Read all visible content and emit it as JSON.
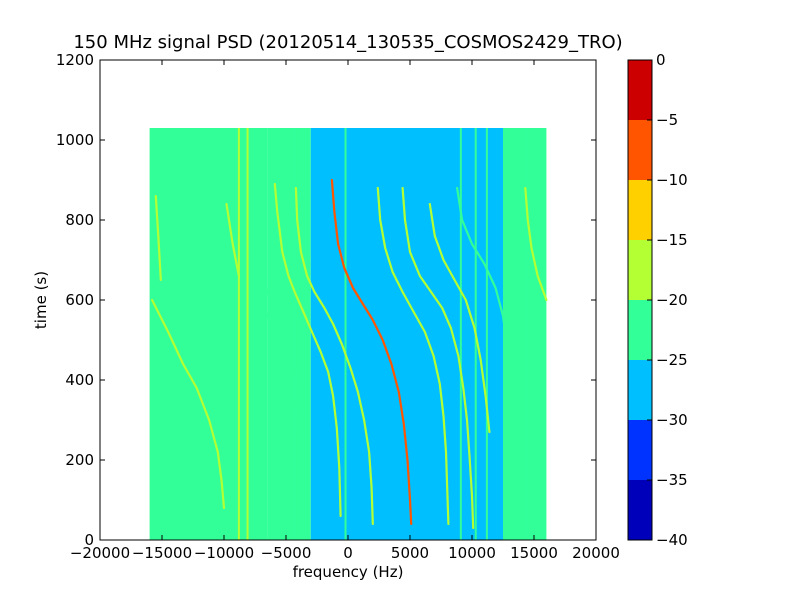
{
  "chart_data": {
    "type": "heatmap",
    "title": "150 MHz signal PSD (20120514_130535_COSMOS2429_TRO)",
    "xlabel": "frequency (Hz)",
    "ylabel": "time (s)",
    "xlim": [
      -20000,
      20000
    ],
    "ylim": [
      0,
      1200
    ],
    "x_ticks": [
      -20000,
      -15000,
      -10000,
      -5000,
      0,
      5000,
      10000,
      15000,
      20000
    ],
    "x_tick_labels": [
      "−20000",
      "−15000",
      "−10000",
      "−5000",
      "0",
      "5000",
      "10000",
      "15000",
      "20000"
    ],
    "y_ticks": [
      0,
      200,
      400,
      600,
      800,
      1000,
      1200
    ],
    "y_tick_labels": [
      "0",
      "200",
      "400",
      "600",
      "800",
      "1000",
      "1200"
    ],
    "data_extent": {
      "x": [
        -16000,
        16000
      ],
      "y": [
        0,
        1030
      ]
    },
    "colorbar": {
      "levels": [
        -40,
        -35,
        -30,
        -25,
        -20,
        -15,
        -10,
        -5,
        0
      ],
      "tick_labels": [
        "−40",
        "−35",
        "−30",
        "−25",
        "−20",
        "−15",
        "−10",
        "−5",
        "0"
      ],
      "colors": [
        "#0000bb",
        "#0033ff",
        "#00bfff",
        "#33ff99",
        "#b3ff33",
        "#ffd000",
        "#ff5500",
        "#cc0000"
      ]
    },
    "background_regions": [
      {
        "x": [
          -16000,
          -6500
        ],
        "level": -22.5
      },
      {
        "x": [
          -6500,
          -3000
        ],
        "level": -24
      },
      {
        "x": [
          -3000,
          12500
        ],
        "level": -27.5
      },
      {
        "x": [
          12500,
          16000
        ],
        "level": -23
      }
    ],
    "vertical_lines": [
      {
        "x": -8800,
        "level": -17.5
      },
      {
        "x": -8100,
        "level": -17.5
      },
      {
        "x": -4300,
        "level": -22.5
      },
      {
        "x": -3500,
        "level": -22.5
      },
      {
        "x": -200,
        "level": -22.5
      },
      {
        "x": 9100,
        "level": -22.5
      },
      {
        "x": 10300,
        "level": -22.5
      },
      {
        "x": 11200,
        "level": -22.5
      },
      {
        "x": 14300,
        "level": -22.5
      }
    ],
    "tracks": [
      {
        "points": [
          [
            -15500,
            860
          ],
          [
            -15300,
            760
          ],
          [
            -15100,
            650
          ]
        ],
        "level": -17.5
      },
      {
        "points": [
          [
            -15800,
            600
          ],
          [
            -14500,
            520
          ],
          [
            -13300,
            440
          ],
          [
            -12200,
            380
          ],
          [
            -11200,
            300
          ],
          [
            -10500,
            220
          ],
          [
            -10200,
            150
          ],
          [
            -10000,
            80
          ]
        ],
        "level": -17.5
      },
      {
        "points": [
          [
            -9800,
            840
          ],
          [
            -9300,
            740
          ],
          [
            -8800,
            660
          ]
        ],
        "level": -17.5
      },
      {
        "points": [
          [
            -7800,
            720
          ],
          [
            -7000,
            660
          ],
          [
            -6000,
            580
          ],
          [
            -5000,
            500
          ],
          [
            -4200,
            420
          ],
          [
            -3800,
            350
          ]
        ],
        "level": -20
      },
      {
        "points": [
          [
            -7200,
            600
          ],
          [
            -6300,
            550
          ],
          [
            -5500,
            480
          ],
          [
            -4700,
            400
          ],
          [
            -4200,
            340
          ],
          [
            -3900,
            280
          ]
        ],
        "level": -20
      },
      {
        "points": [
          [
            -5900,
            890
          ],
          [
            -5700,
            820
          ],
          [
            -5300,
            720
          ],
          [
            -4800,
            660
          ],
          [
            -4300,
            620
          ],
          [
            -3600,
            570
          ],
          [
            -2900,
            520
          ],
          [
            -2200,
            470
          ],
          [
            -1600,
            420
          ],
          [
            -1200,
            360
          ],
          [
            -900,
            280
          ],
          [
            -700,
            180
          ],
          [
            -600,
            60
          ]
        ],
        "level": -15
      },
      {
        "points": [
          [
            -4200,
            880
          ],
          [
            -4100,
            800
          ],
          [
            -3800,
            720
          ],
          [
            -3300,
            660
          ],
          [
            -2700,
            620
          ],
          [
            -1900,
            580
          ],
          [
            -1200,
            540
          ],
          [
            -500,
            490
          ],
          [
            200,
            430
          ],
          [
            800,
            370
          ],
          [
            1300,
            300
          ],
          [
            1700,
            220
          ],
          [
            1900,
            130
          ],
          [
            2000,
            40
          ]
        ],
        "level": -15
      },
      {
        "points": [
          [
            -1300,
            900
          ],
          [
            -1100,
            820
          ],
          [
            -800,
            740
          ],
          [
            -300,
            680
          ],
          [
            400,
            630
          ],
          [
            1200,
            590
          ],
          [
            2000,
            550
          ],
          [
            2800,
            500
          ],
          [
            3500,
            440
          ],
          [
            4100,
            370
          ],
          [
            4500,
            290
          ],
          [
            4800,
            200
          ],
          [
            5000,
            100
          ],
          [
            5100,
            40
          ]
        ],
        "level": -5
      },
      {
        "points": [
          [
            2400,
            880
          ],
          [
            2600,
            800
          ],
          [
            3000,
            730
          ],
          [
            3600,
            670
          ],
          [
            4400,
            620
          ],
          [
            5300,
            570
          ],
          [
            6200,
            520
          ],
          [
            6900,
            460
          ],
          [
            7400,
            390
          ],
          [
            7700,
            310
          ],
          [
            7900,
            220
          ],
          [
            8000,
            130
          ],
          [
            8100,
            40
          ]
        ],
        "level": -15
      },
      {
        "points": [
          [
            4400,
            880
          ],
          [
            4600,
            800
          ],
          [
            5000,
            720
          ],
          [
            5800,
            660
          ],
          [
            6700,
            620
          ],
          [
            7600,
            580
          ],
          [
            8300,
            530
          ],
          [
            8900,
            460
          ],
          [
            9300,
            380
          ],
          [
            9600,
            300
          ],
          [
            9800,
            210
          ],
          [
            10000,
            110
          ],
          [
            10100,
            30
          ]
        ],
        "level": -15
      },
      {
        "points": [
          [
            6600,
            840
          ],
          [
            7000,
            760
          ],
          [
            7700,
            700
          ],
          [
            8600,
            650
          ],
          [
            9500,
            600
          ],
          [
            10200,
            530
          ],
          [
            10700,
            450
          ],
          [
            11100,
            360
          ],
          [
            11400,
            270
          ]
        ],
        "level": -17.5
      },
      {
        "points": [
          [
            8800,
            880
          ],
          [
            9200,
            800
          ],
          [
            10000,
            740
          ],
          [
            11000,
            690
          ],
          [
            11900,
            630
          ],
          [
            12500,
            560
          ],
          [
            12900,
            470
          ],
          [
            13300,
            380
          ],
          [
            13600,
            300
          ]
        ],
        "level": -20
      },
      {
        "points": [
          [
            14300,
            880
          ],
          [
            14500,
            800
          ],
          [
            14800,
            730
          ],
          [
            15300,
            660
          ],
          [
            16000,
            600
          ]
        ],
        "level": -17.5
      }
    ]
  }
}
